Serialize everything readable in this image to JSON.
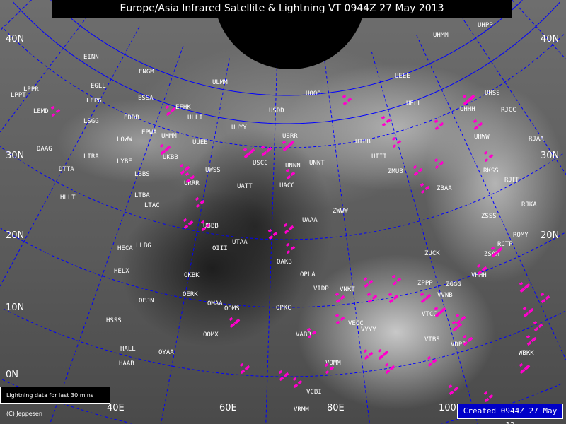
{
  "header": {
    "title": "Europe/Asia Infrared Satellite & Lightning    VT 0944Z 27 May 2013"
  },
  "legend": {
    "text": "Lightning data for last 30 mins"
  },
  "copyright": "(C) Jeppesen",
  "created": "Created 0944Z 27 May 13",
  "colors": {
    "grid": "#0000ff",
    "lightning": "#ff00cc",
    "borders": "#ffffff",
    "created_bg": "#0000c8",
    "polar_cap": "#000000"
  },
  "lat_labels": [
    "40N",
    "30N",
    "20N",
    "10N",
    "0N",
    "40N",
    "30N",
    "20N"
  ],
  "lon_labels": [
    "40E",
    "60E",
    "80E",
    "100E"
  ],
  "stations": [
    "EINN",
    "EGLL",
    "ENGM",
    "LFPG",
    "LPPT",
    "LPPR",
    "LEMD",
    "LSGG",
    "EDDB",
    "EPWA",
    "LOWW",
    "UMMM",
    "UUEE",
    "ESSA",
    "EFHK",
    "ULLI",
    "ULMM",
    "DAAG",
    "LIRA",
    "LYBE",
    "DTTA",
    "UKBB",
    "LBBS",
    "UWSS",
    "LTBA",
    "HLLT",
    "URRR",
    "UUYY",
    "USDD",
    "UOOO",
    "UEEE",
    "UELL",
    "USRR",
    "USCC",
    "UNNN",
    "UNNT",
    "UATT",
    "UACC",
    "UIBB",
    "UIII",
    "ZMUB",
    "ZWWW",
    "UAAA",
    "UHPP",
    "UHMM",
    "UHSS",
    "UHHH",
    "UHWW",
    "RJCC",
    "RJAA",
    "RKSS",
    "RJFF",
    "ZBAA",
    "RJKA",
    "ZSSS",
    "ROMY",
    "RCTP",
    "LTAC",
    "UBBB",
    "LLBG",
    "HECA",
    "OIII",
    "UTAA",
    "HELX",
    "OAKB",
    "OKBK",
    "OPLA",
    "VIDP",
    "OERK",
    "OEJN",
    "OMAA",
    "OPKC",
    "OOMS",
    "HSSS",
    "OOMX",
    "VABB",
    "HALL",
    "OYAA",
    "HAAB",
    "VNKT",
    "ZPPP",
    "ZGGG",
    "VVNB",
    "VTCC",
    "VECC",
    "VYYY",
    "VTBS",
    "VDPP",
    "VOMM",
    "ZSAM",
    "VHHH",
    "ZUCK",
    "WBKK",
    "VCBI",
    "VRMM"
  ]
}
